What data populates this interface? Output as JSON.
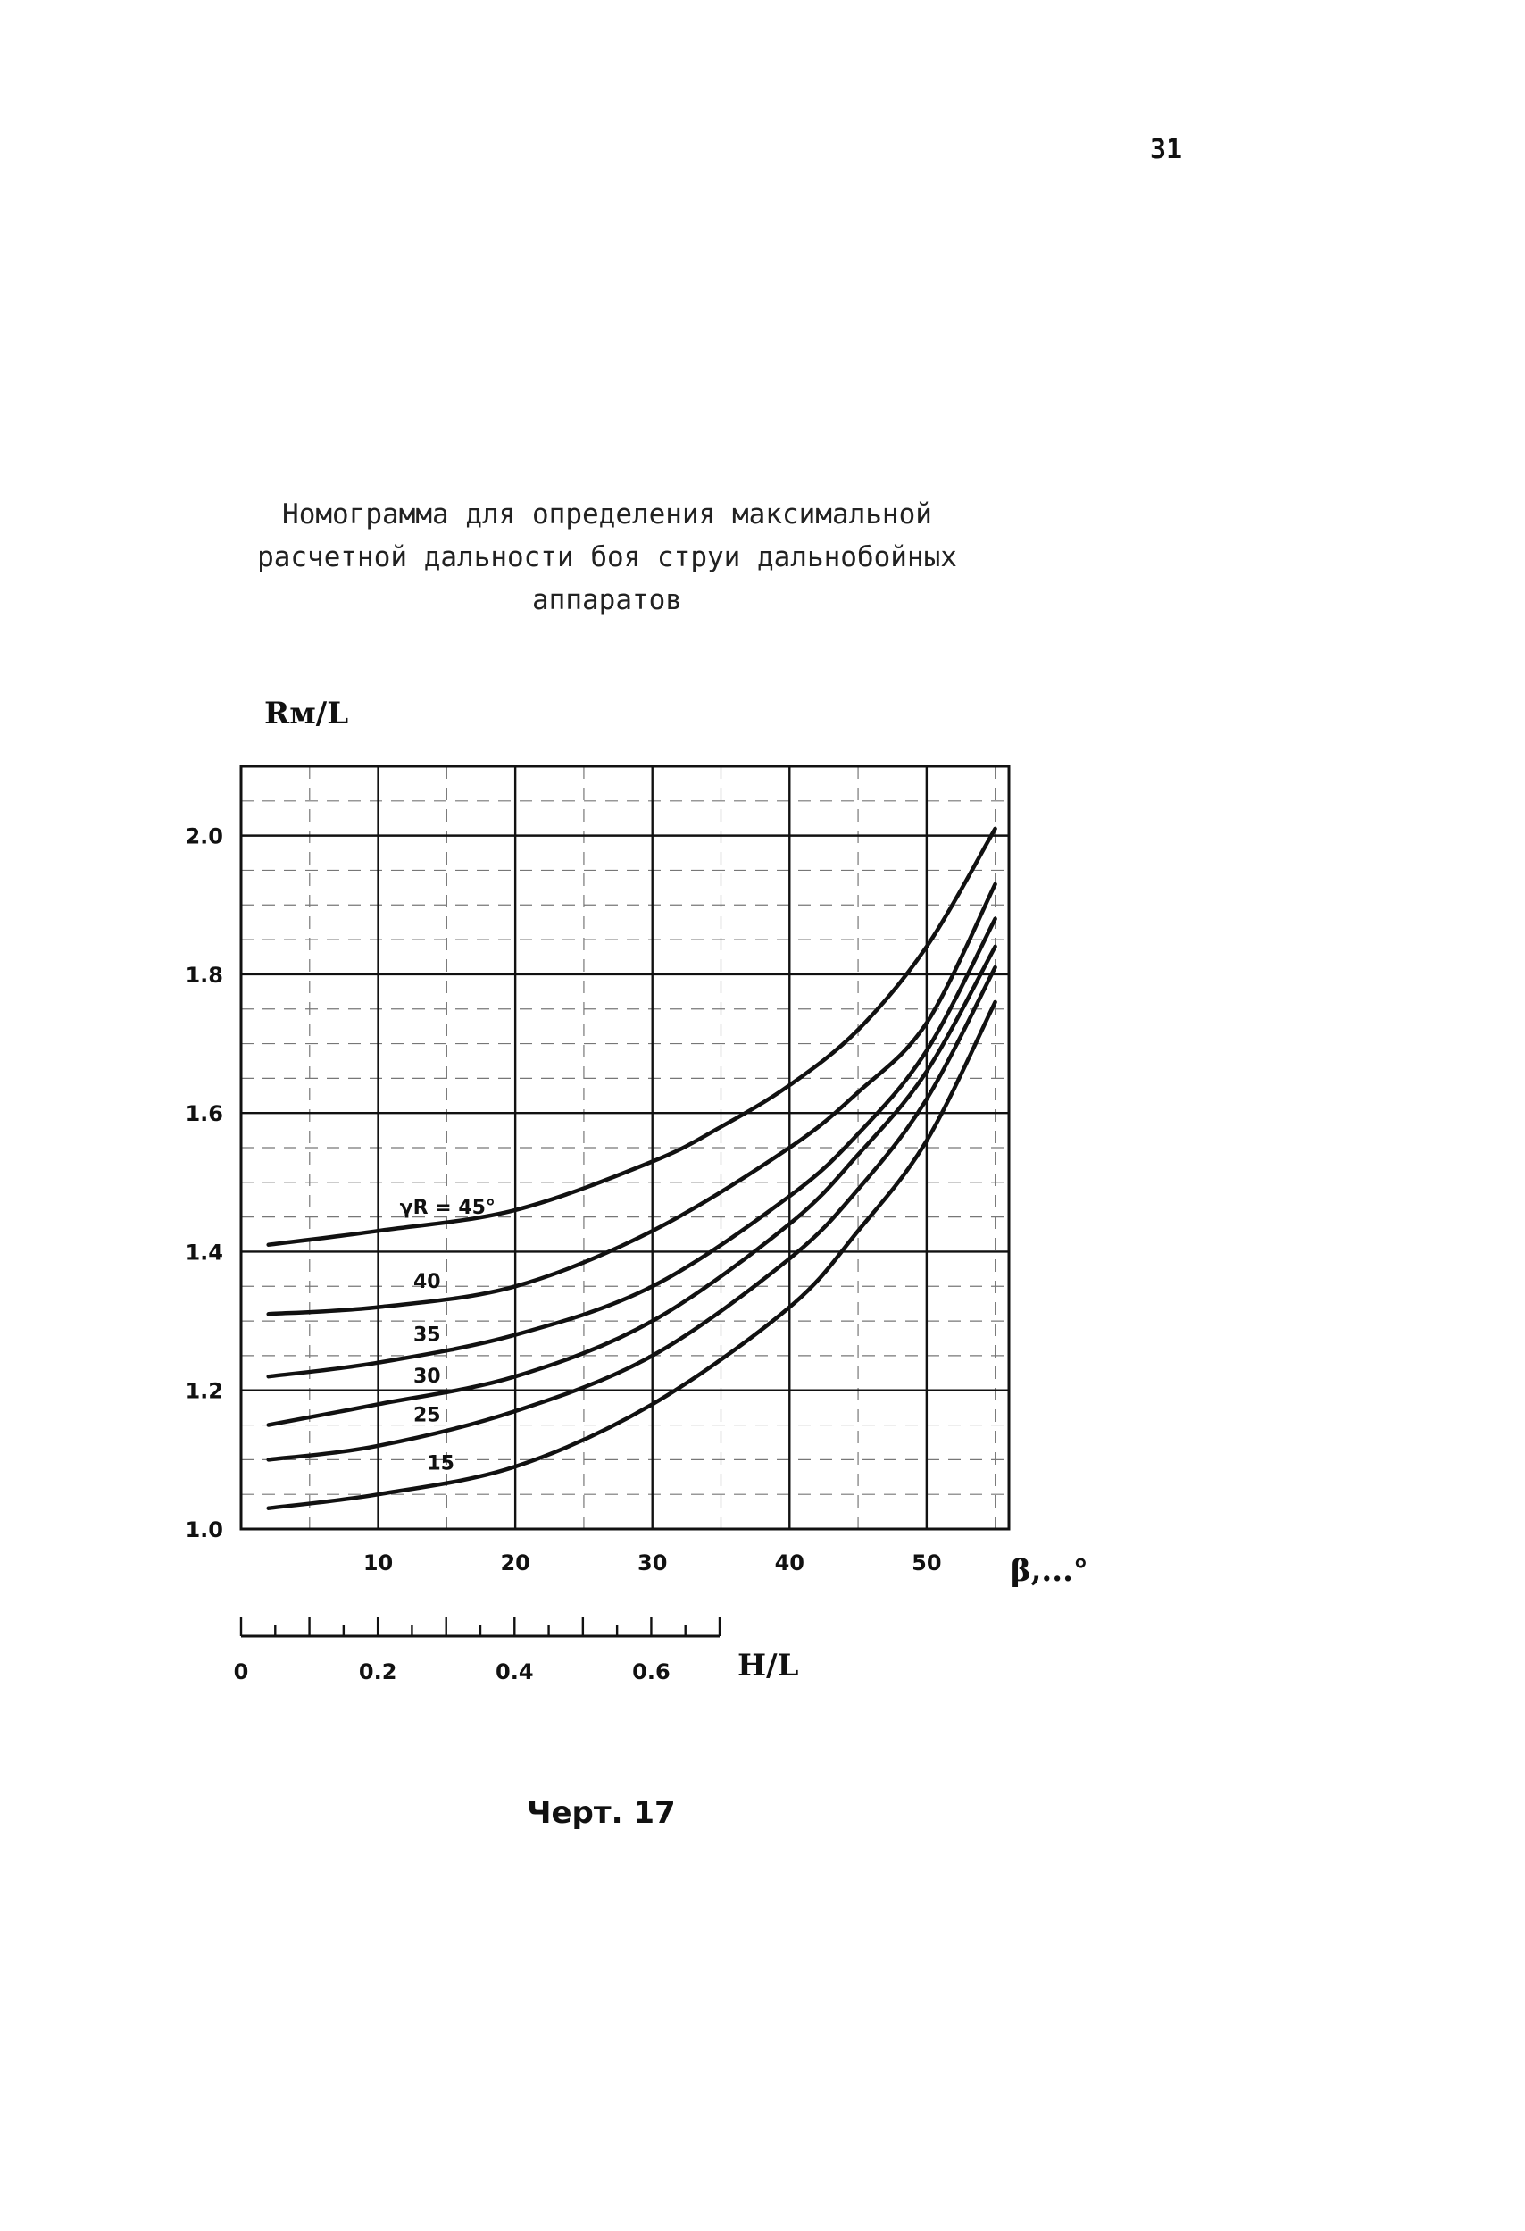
{
  "page": {
    "number": "31"
  },
  "title": {
    "lines": [
      "Номограмма для определения максимальной",
      "расчетной дальности боя струи дальнобойных",
      "аппаратов"
    ]
  },
  "caption": "Черт. 17",
  "chart_data": {
    "type": "line",
    "ylabel": "Rм/L",
    "xlabel": "β,...°",
    "x_ticks": [
      "10",
      "20",
      "30",
      "40",
      "50"
    ],
    "y_ticks": [
      "1.0",
      "1.2",
      "1.4",
      "1.6",
      "1.8",
      "2.0"
    ],
    "xlim": [
      0,
      56
    ],
    "ylim": [
      1.0,
      2.1
    ],
    "grid": true,
    "secondary_axis": {
      "label": "H/L",
      "ticks": [
        "0",
        "0.2",
        "0.4",
        "0.6"
      ],
      "range": [
        0,
        0.7
      ]
    },
    "series": [
      {
        "name": "γR = 45°",
        "x": [
          2,
          10,
          20,
          30,
          35,
          40,
          45,
          50,
          55
        ],
        "values": [
          1.41,
          1.43,
          1.46,
          1.53,
          1.58,
          1.64,
          1.72,
          1.84,
          2.01
        ]
      },
      {
        "name": "40",
        "x": [
          2,
          10,
          20,
          30,
          40,
          45,
          50,
          55
        ],
        "values": [
          1.31,
          1.32,
          1.35,
          1.43,
          1.55,
          1.63,
          1.73,
          1.93
        ]
      },
      {
        "name": "35",
        "x": [
          2,
          10,
          20,
          30,
          40,
          45,
          50,
          55
        ],
        "values": [
          1.22,
          1.24,
          1.28,
          1.35,
          1.48,
          1.57,
          1.69,
          1.88
        ]
      },
      {
        "name": "30",
        "x": [
          2,
          10,
          20,
          30,
          40,
          45,
          50,
          55
        ],
        "values": [
          1.15,
          1.18,
          1.22,
          1.3,
          1.44,
          1.54,
          1.66,
          1.84
        ]
      },
      {
        "name": "25",
        "x": [
          2,
          10,
          20,
          30,
          40,
          45,
          50,
          55
        ],
        "values": [
          1.1,
          1.12,
          1.17,
          1.25,
          1.39,
          1.49,
          1.62,
          1.81
        ]
      },
      {
        "name": "15",
        "x": [
          2,
          10,
          20,
          30,
          40,
          45,
          50,
          55
        ],
        "values": [
          1.03,
          1.05,
          1.09,
          1.18,
          1.32,
          1.43,
          1.56,
          1.76
        ]
      }
    ]
  }
}
